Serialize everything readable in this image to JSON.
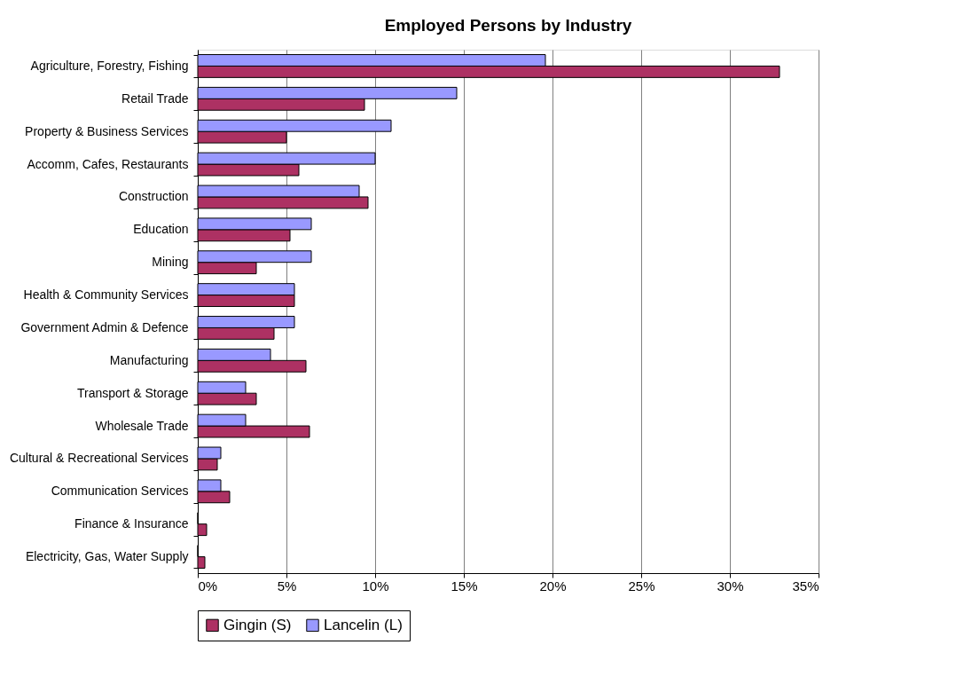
{
  "chart_data": {
    "type": "bar",
    "orientation": "horizontal",
    "title": "Employed Persons by Industry",
    "categories": [
      "Agriculture, Forestry, Fishing",
      "Retail Trade",
      "Property & Business Services",
      "Accomm, Cafes, Restaurants",
      "Construction",
      "Education",
      "Mining",
      "Health & Community Services",
      "Government Admin & Defence",
      "Manufacturing",
      "Transport & Storage",
      "Wholesale Trade",
      "Cultural & Recreational Services",
      "Communication Services",
      "Finance & Insurance",
      "Electricity, Gas, Water Supply"
    ],
    "series": [
      {
        "name": "Gingin (S)",
        "color": "#ad3163",
        "values": [
          32.8,
          9.4,
          5.0,
          5.7,
          9.6,
          5.2,
          3.3,
          5.45,
          4.3,
          6.1,
          3.3,
          6.3,
          1.1,
          1.8,
          0.5,
          0.4
        ]
      },
      {
        "name": "Lancelin (L)",
        "color": "#9999ff",
        "values": [
          19.6,
          14.6,
          10.9,
          10.0,
          9.1,
          6.4,
          6.4,
          5.45,
          5.45,
          4.1,
          2.7,
          2.7,
          1.3,
          1.3,
          0,
          0
        ]
      }
    ],
    "xlim": [
      0,
      35
    ],
    "xticks": [
      {
        "value": 0,
        "label": "0%"
      },
      {
        "value": 5,
        "label": "5%"
      },
      {
        "value": 10,
        "label": "10%"
      },
      {
        "value": 15,
        "label": "15%"
      },
      {
        "value": 20,
        "label": "20%"
      },
      {
        "value": 25,
        "label": "25%"
      },
      {
        "value": 30,
        "label": "30%"
      },
      {
        "value": 35,
        "label": "35%"
      }
    ],
    "grid": "x",
    "legend": "bottom"
  }
}
